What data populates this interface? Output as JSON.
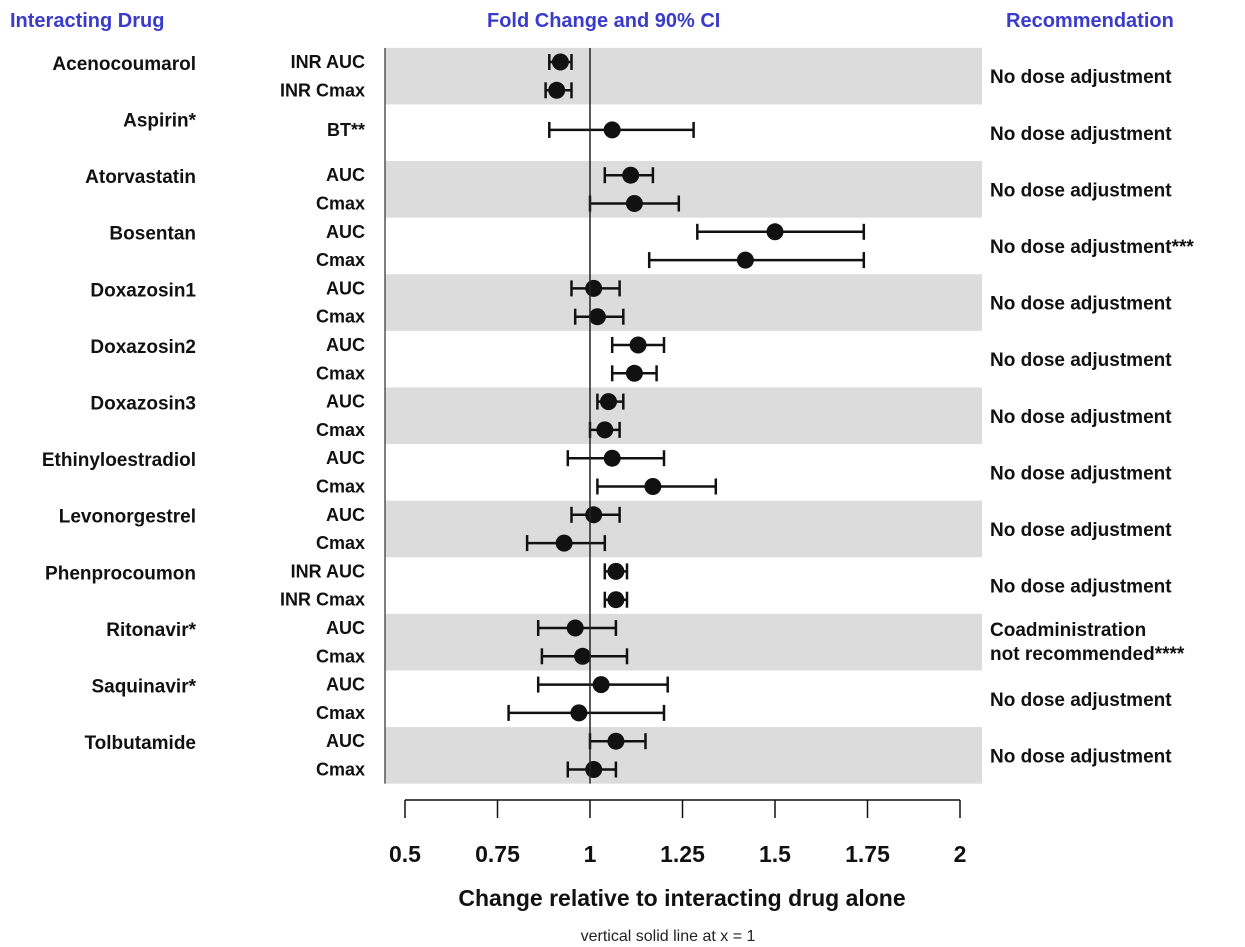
{
  "headers": {
    "col1": "Interacting Drug",
    "col2": "Fold Change and 90% CI",
    "col3": "Recommendation"
  },
  "chart_data": {
    "type": "forest",
    "xlabel": "Change relative to interacting drug alone",
    "note": "vertical solid line at x = 1",
    "reference_line": 1,
    "xlim": [
      0.5,
      2
    ],
    "xticks": [
      "0.5",
      "0.75",
      "1",
      "1.25",
      "1.5",
      "1.75",
      "2"
    ],
    "groups": [
      {
        "drug": "Acenocoumarol",
        "recommendation": [
          "No dose adjustment"
        ],
        "rows": [
          {
            "metric": "INR AUC",
            "estimate": 0.92,
            "lower": 0.89,
            "upper": 0.95
          },
          {
            "metric": "INR Cmax",
            "estimate": 0.91,
            "lower": 0.88,
            "upper": 0.95
          }
        ]
      },
      {
        "drug": "Aspirin*",
        "recommendation": [
          "No dose adjustment"
        ],
        "rows": [
          {
            "metric": "BT**",
            "estimate": 1.06,
            "lower": 0.89,
            "upper": 1.28
          }
        ]
      },
      {
        "drug": "Atorvastatin",
        "recommendation": [
          "No dose adjustment"
        ],
        "rows": [
          {
            "metric": "AUC",
            "estimate": 1.11,
            "lower": 1.04,
            "upper": 1.17
          },
          {
            "metric": "Cmax",
            "estimate": 1.12,
            "lower": 1.0,
            "upper": 1.24
          }
        ]
      },
      {
        "drug": "Bosentan",
        "recommendation": [
          "No dose adjustment***"
        ],
        "rows": [
          {
            "metric": "AUC",
            "estimate": 1.5,
            "lower": 1.29,
            "upper": 1.74
          },
          {
            "metric": "Cmax",
            "estimate": 1.42,
            "lower": 1.16,
            "upper": 1.74
          }
        ]
      },
      {
        "drug": "Doxazosin1",
        "recommendation": [
          "No dose adjustment"
        ],
        "rows": [
          {
            "metric": "AUC",
            "estimate": 1.01,
            "lower": 0.95,
            "upper": 1.08
          },
          {
            "metric": "Cmax",
            "estimate": 1.02,
            "lower": 0.96,
            "upper": 1.09
          }
        ]
      },
      {
        "drug": "Doxazosin2",
        "recommendation": [
          "No dose adjustment"
        ],
        "rows": [
          {
            "metric": "AUC",
            "estimate": 1.13,
            "lower": 1.06,
            "upper": 1.2
          },
          {
            "metric": "Cmax",
            "estimate": 1.12,
            "lower": 1.06,
            "upper": 1.18
          }
        ]
      },
      {
        "drug": "Doxazosin3",
        "recommendation": [
          "No dose adjustment"
        ],
        "rows": [
          {
            "metric": "AUC",
            "estimate": 1.05,
            "lower": 1.02,
            "upper": 1.09
          },
          {
            "metric": "Cmax",
            "estimate": 1.04,
            "lower": 1.0,
            "upper": 1.08
          }
        ]
      },
      {
        "drug": "Ethinyloestradiol",
        "recommendation": [
          "No dose adjustment"
        ],
        "rows": [
          {
            "metric": "AUC",
            "estimate": 1.06,
            "lower": 0.94,
            "upper": 1.2
          },
          {
            "metric": "Cmax",
            "estimate": 1.17,
            "lower": 1.02,
            "upper": 1.34
          }
        ]
      },
      {
        "drug": "Levonorgestrel",
        "recommendation": [
          "No dose adjustment"
        ],
        "rows": [
          {
            "metric": "AUC",
            "estimate": 1.01,
            "lower": 0.95,
            "upper": 1.08
          },
          {
            "metric": "Cmax",
            "estimate": 0.93,
            "lower": 0.83,
            "upper": 1.04
          }
        ]
      },
      {
        "drug": "Phenprocoumon",
        "recommendation": [
          "No dose adjustment"
        ],
        "rows": [
          {
            "metric": "INR AUC",
            "estimate": 1.07,
            "lower": 1.04,
            "upper": 1.1
          },
          {
            "metric": "INR Cmax",
            "estimate": 1.07,
            "lower": 1.04,
            "upper": 1.1
          }
        ]
      },
      {
        "drug": "Ritonavir*",
        "recommendation": [
          "Coadministration",
          "not recommended****"
        ],
        "rows": [
          {
            "metric": "AUC",
            "estimate": 0.96,
            "lower": 0.86,
            "upper": 1.07
          },
          {
            "metric": "Cmax",
            "estimate": 0.98,
            "lower": 0.87,
            "upper": 1.1
          }
        ]
      },
      {
        "drug": "Saquinavir*",
        "recommendation": [
          "No dose adjustment"
        ],
        "rows": [
          {
            "metric": "AUC",
            "estimate": 1.03,
            "lower": 0.86,
            "upper": 1.21
          },
          {
            "metric": "Cmax",
            "estimate": 0.97,
            "lower": 0.78,
            "upper": 1.2
          }
        ]
      },
      {
        "drug": "Tolbutamide",
        "recommendation": [
          "No dose adjustment"
        ],
        "rows": [
          {
            "metric": "AUC",
            "estimate": 1.07,
            "lower": 1.0,
            "upper": 1.15
          },
          {
            "metric": "Cmax",
            "estimate": 1.01,
            "lower": 0.94,
            "upper": 1.07
          }
        ]
      }
    ]
  }
}
